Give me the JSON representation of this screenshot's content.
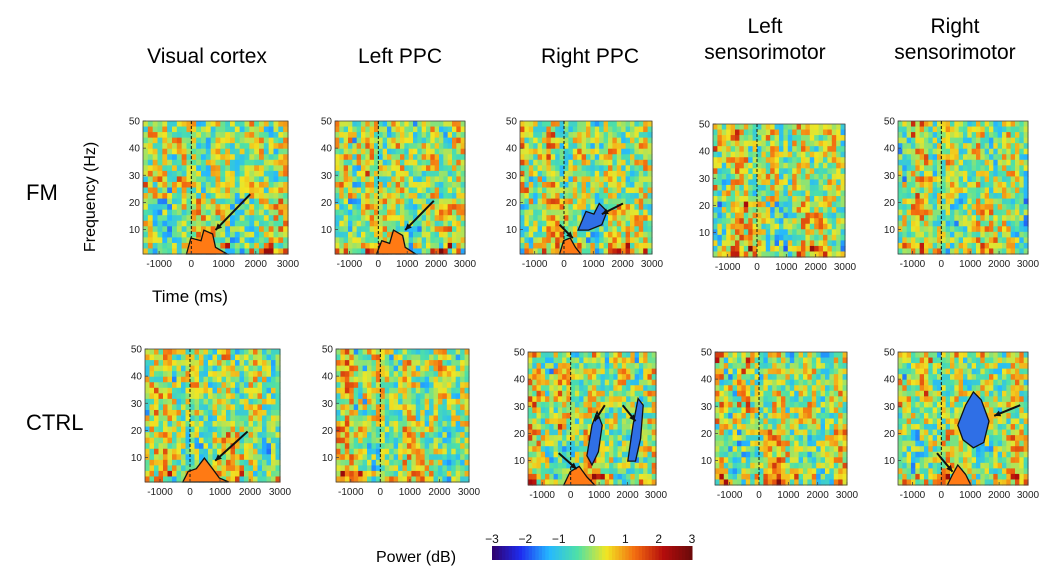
{
  "regions": [
    "Visual cortex",
    "Left PPC",
    "Right PPC",
    "Left\nsensorimotor",
    "Right\nsensorimotor"
  ],
  "rows": [
    "FM",
    "CTRL"
  ],
  "ylabel": "Frequency (Hz)",
  "xlabel": "Time (ms)",
  "xticks": [
    "-1000",
    "0",
    "1000",
    "2000",
    "3000"
  ],
  "yticks": [
    "10",
    "20",
    "30",
    "40",
    "50"
  ],
  "colorbar": {
    "label": "Power (dB)",
    "ticks": [
      "−3",
      "−2",
      "−1",
      "0",
      "1",
      "2",
      "3"
    ],
    "range": [
      -3,
      3
    ],
    "colors": [
      "#30006a",
      "#1e2cf0",
      "#25b8ff",
      "#4fe1a6",
      "#f1e623",
      "#f36c10",
      "#b40c0c",
      "#6a0a0a"
    ]
  },
  "chart_data": {
    "type": "heatmap",
    "x_range_ms": [
      -1500,
      3000
    ],
    "y_range_hz": [
      1,
      50
    ],
    "value_range_db": [
      -3,
      3
    ],
    "panels": [
      {
        "row": "FM",
        "region": "Visual cortex",
        "significant_clusters": [
          "positive, low frequency, ~0-1000 ms"
        ]
      },
      {
        "row": "FM",
        "region": "Left PPC",
        "significant_clusters": [
          "positive, low frequency, ~0-1000 ms"
        ]
      },
      {
        "row": "FM",
        "region": "Right PPC",
        "significant_clusters": [
          "positive, low frequency, ~0-500 ms",
          "negative, ~10-20 Hz, ~500-1500 ms"
        ]
      },
      {
        "row": "FM",
        "region": "Left sensorimotor",
        "significant_clusters": []
      },
      {
        "row": "FM",
        "region": "Right sensorimotor",
        "significant_clusters": []
      },
      {
        "row": "CTRL",
        "region": "Visual cortex",
        "significant_clusters": [
          "positive, low frequency, ~0-1000 ms"
        ]
      },
      {
        "row": "CTRL",
        "region": "Left PPC",
        "significant_clusters": []
      },
      {
        "row": "CTRL",
        "region": "Right PPC",
        "significant_clusters": [
          "positive, low frequency, ~0-1000 ms",
          "negative, ~10-30 Hz, ~600-1200 ms",
          "negative, ~10-30 Hz, ~1900-2500 ms"
        ]
      },
      {
        "row": "CTRL",
        "region": "Left sensorimotor",
        "significant_clusters": []
      },
      {
        "row": "CTRL",
        "region": "Right sensorimotor",
        "significant_clusters": [
          "positive, low frequency, ~300-900 ms",
          "negative, ~15-35 Hz, ~700-1800 ms"
        ]
      }
    ]
  }
}
